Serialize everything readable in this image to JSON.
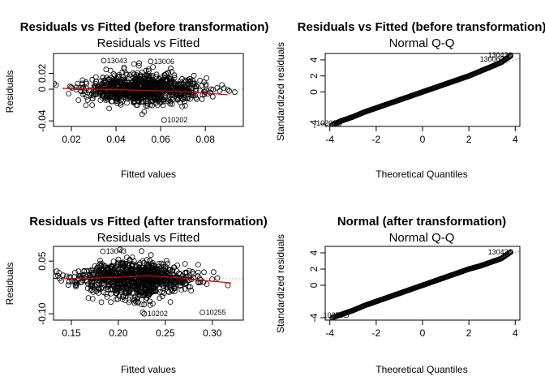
{
  "chart_data": [
    {
      "type": "scatter",
      "title": "Residuals vs Fitted (before transformation)",
      "subtitle": "Residuals vs Fitted",
      "xlabel": "Fitted values",
      "ylabel": "Residuals",
      "xlim": [
        0.012,
        0.097
      ],
      "ylim": [
        -0.047,
        0.045
      ],
      "x_ticks": [
        0.02,
        0.04,
        0.06,
        0.08
      ],
      "x_tick_labels": [
        "0.02",
        "0.04",
        "0.06",
        "0.08"
      ],
      "y_ticks": [
        -0.04,
        0.0,
        0.02
      ],
      "y_tick_labels": [
        "-0.04",
        "0",
        "0.02"
      ],
      "grid": false,
      "reference_line": 0,
      "cloud": {
        "x_center": 0.052,
        "x_sd": 0.013,
        "y_sd_top": 0.011,
        "y_sd_bottom": 0.01
      },
      "smooth": {
        "x": [
          0.016,
          0.03,
          0.045,
          0.06,
          0.075,
          0.09
        ],
        "y": [
          0.001,
          0.0,
          -0.001,
          -0.002,
          -0.004,
          -0.007
        ]
      },
      "labeled_points": [
        {
          "id": "13043",
          "x": 0.0345,
          "y": 0.036
        },
        {
          "id": "13006",
          "x": 0.0555,
          "y": 0.035
        },
        {
          "id": "10202",
          "x": 0.0615,
          "y": -0.039
        }
      ]
    },
    {
      "type": "scatter",
      "title": "Residuals vs Fitted (before transformation)",
      "subtitle": "Normal Q-Q",
      "xlabel": "Theoretical Quantiles",
      "ylabel": "Standardized residuals",
      "xlim": [
        -4.2,
        4.2
      ],
      "ylim": [
        -4.3,
        4.8
      ],
      "x_ticks": [
        -4,
        -2,
        0,
        2,
        4
      ],
      "x_tick_labels": [
        "-4",
        "-2",
        "0",
        "2",
        "4"
      ],
      "y_ticks": [
        -4,
        0,
        2,
        4
      ],
      "y_tick_labels": [
        "-4",
        "0",
        "2",
        "4"
      ],
      "grid": false,
      "qq_points": {
        "x": [
          -3.9,
          -3.5,
          -3.0,
          -2.5,
          -2.0,
          -1.5,
          -1.0,
          -0.5,
          0.0,
          0.5,
          1.0,
          1.5,
          2.0,
          2.5,
          3.0,
          3.4,
          3.8
        ],
        "y": [
          -4.1,
          -3.6,
          -3.1,
          -2.5,
          -2.0,
          -1.5,
          -1.0,
          -0.5,
          0.0,
          0.5,
          1.0,
          1.5,
          2.0,
          2.6,
          3.2,
          3.7,
          4.5
        ]
      },
      "reference_line": {
        "slope": 1,
        "intercept": 0
      },
      "labeled_points": [
        {
          "id": "13043",
          "x": 3.8,
          "y": 4.6
        },
        {
          "id": "13006",
          "x": 3.45,
          "y": 4.1
        },
        {
          "id": "10202",
          "x": -3.6,
          "y": -3.9
        }
      ]
    },
    {
      "type": "scatter",
      "title": "Residuals vs Fitted (after transformation)",
      "subtitle": "Residuals vs Fitted",
      "xlabel": "Fitted values",
      "ylabel": "Residuals",
      "xlim": [
        0.131,
        0.333
      ],
      "ylim": [
        -0.118,
        0.092
      ],
      "x_ticks": [
        0.15,
        0.2,
        0.25,
        0.3
      ],
      "x_tick_labels": [
        "0.15",
        "0.20",
        "0.25",
        "0.30"
      ],
      "y_ticks": [
        -0.1,
        0.05
      ],
      "y_tick_labels": [
        "-0.10",
        "0.05"
      ],
      "grid": false,
      "reference_line": 0,
      "cloud": {
        "x_center": 0.218,
        "x_sd": 0.03,
        "y_sd_top": 0.025,
        "y_sd_bottom": 0.03
      },
      "smooth": {
        "x": [
          0.14,
          0.17,
          0.2,
          0.23,
          0.26,
          0.29,
          0.32
        ],
        "y": [
          0.0,
          0.001,
          0.004,
          0.008,
          0.004,
          -0.005,
          -0.012
        ]
      },
      "labeled_points": [
        {
          "id": "13043",
          "x": 0.1835,
          "y": 0.078
        },
        {
          "id": "10202",
          "x": 0.2275,
          "y": -0.1
        },
        {
          "id": "10255",
          "x": 0.2895,
          "y": -0.096
        }
      ]
    },
    {
      "type": "scatter",
      "title": "Normal (after transformation)",
      "subtitle": "Normal Q-Q",
      "xlabel": "Theoretical Quantiles",
      "ylabel": "Standardized residuals",
      "xlim": [
        -4.2,
        4.2
      ],
      "ylim": [
        -4.3,
        4.8
      ],
      "x_ticks": [
        -4,
        -2,
        0,
        2,
        4
      ],
      "x_tick_labels": [
        "-4",
        "-2",
        "0",
        "2",
        "4"
      ],
      "y_ticks": [
        -4,
        0,
        2,
        4
      ],
      "y_tick_labels": [
        "-4",
        "0",
        "2",
        "4"
      ],
      "grid": false,
      "qq_points": {
        "x": [
          -3.9,
          -3.5,
          -3.0,
          -2.5,
          -2.0,
          -1.5,
          -1.0,
          -0.5,
          0.0,
          0.5,
          1.0,
          1.5,
          2.0,
          2.5,
          3.0,
          3.4,
          3.8
        ],
        "y": [
          -4.0,
          -3.6,
          -3.1,
          -2.5,
          -2.0,
          -1.5,
          -1.0,
          -0.5,
          0.0,
          0.5,
          1.0,
          1.5,
          2.0,
          2.4,
          2.9,
          3.3,
          4.1
        ]
      },
      "reference_line": {
        "slope": 1,
        "intercept": 0
      },
      "labeled_points": [
        {
          "id": "13043",
          "x": 3.8,
          "y": 4.1
        },
        {
          "id": "10255",
          "x": -3.3,
          "y": -3.7
        }
      ]
    }
  ]
}
